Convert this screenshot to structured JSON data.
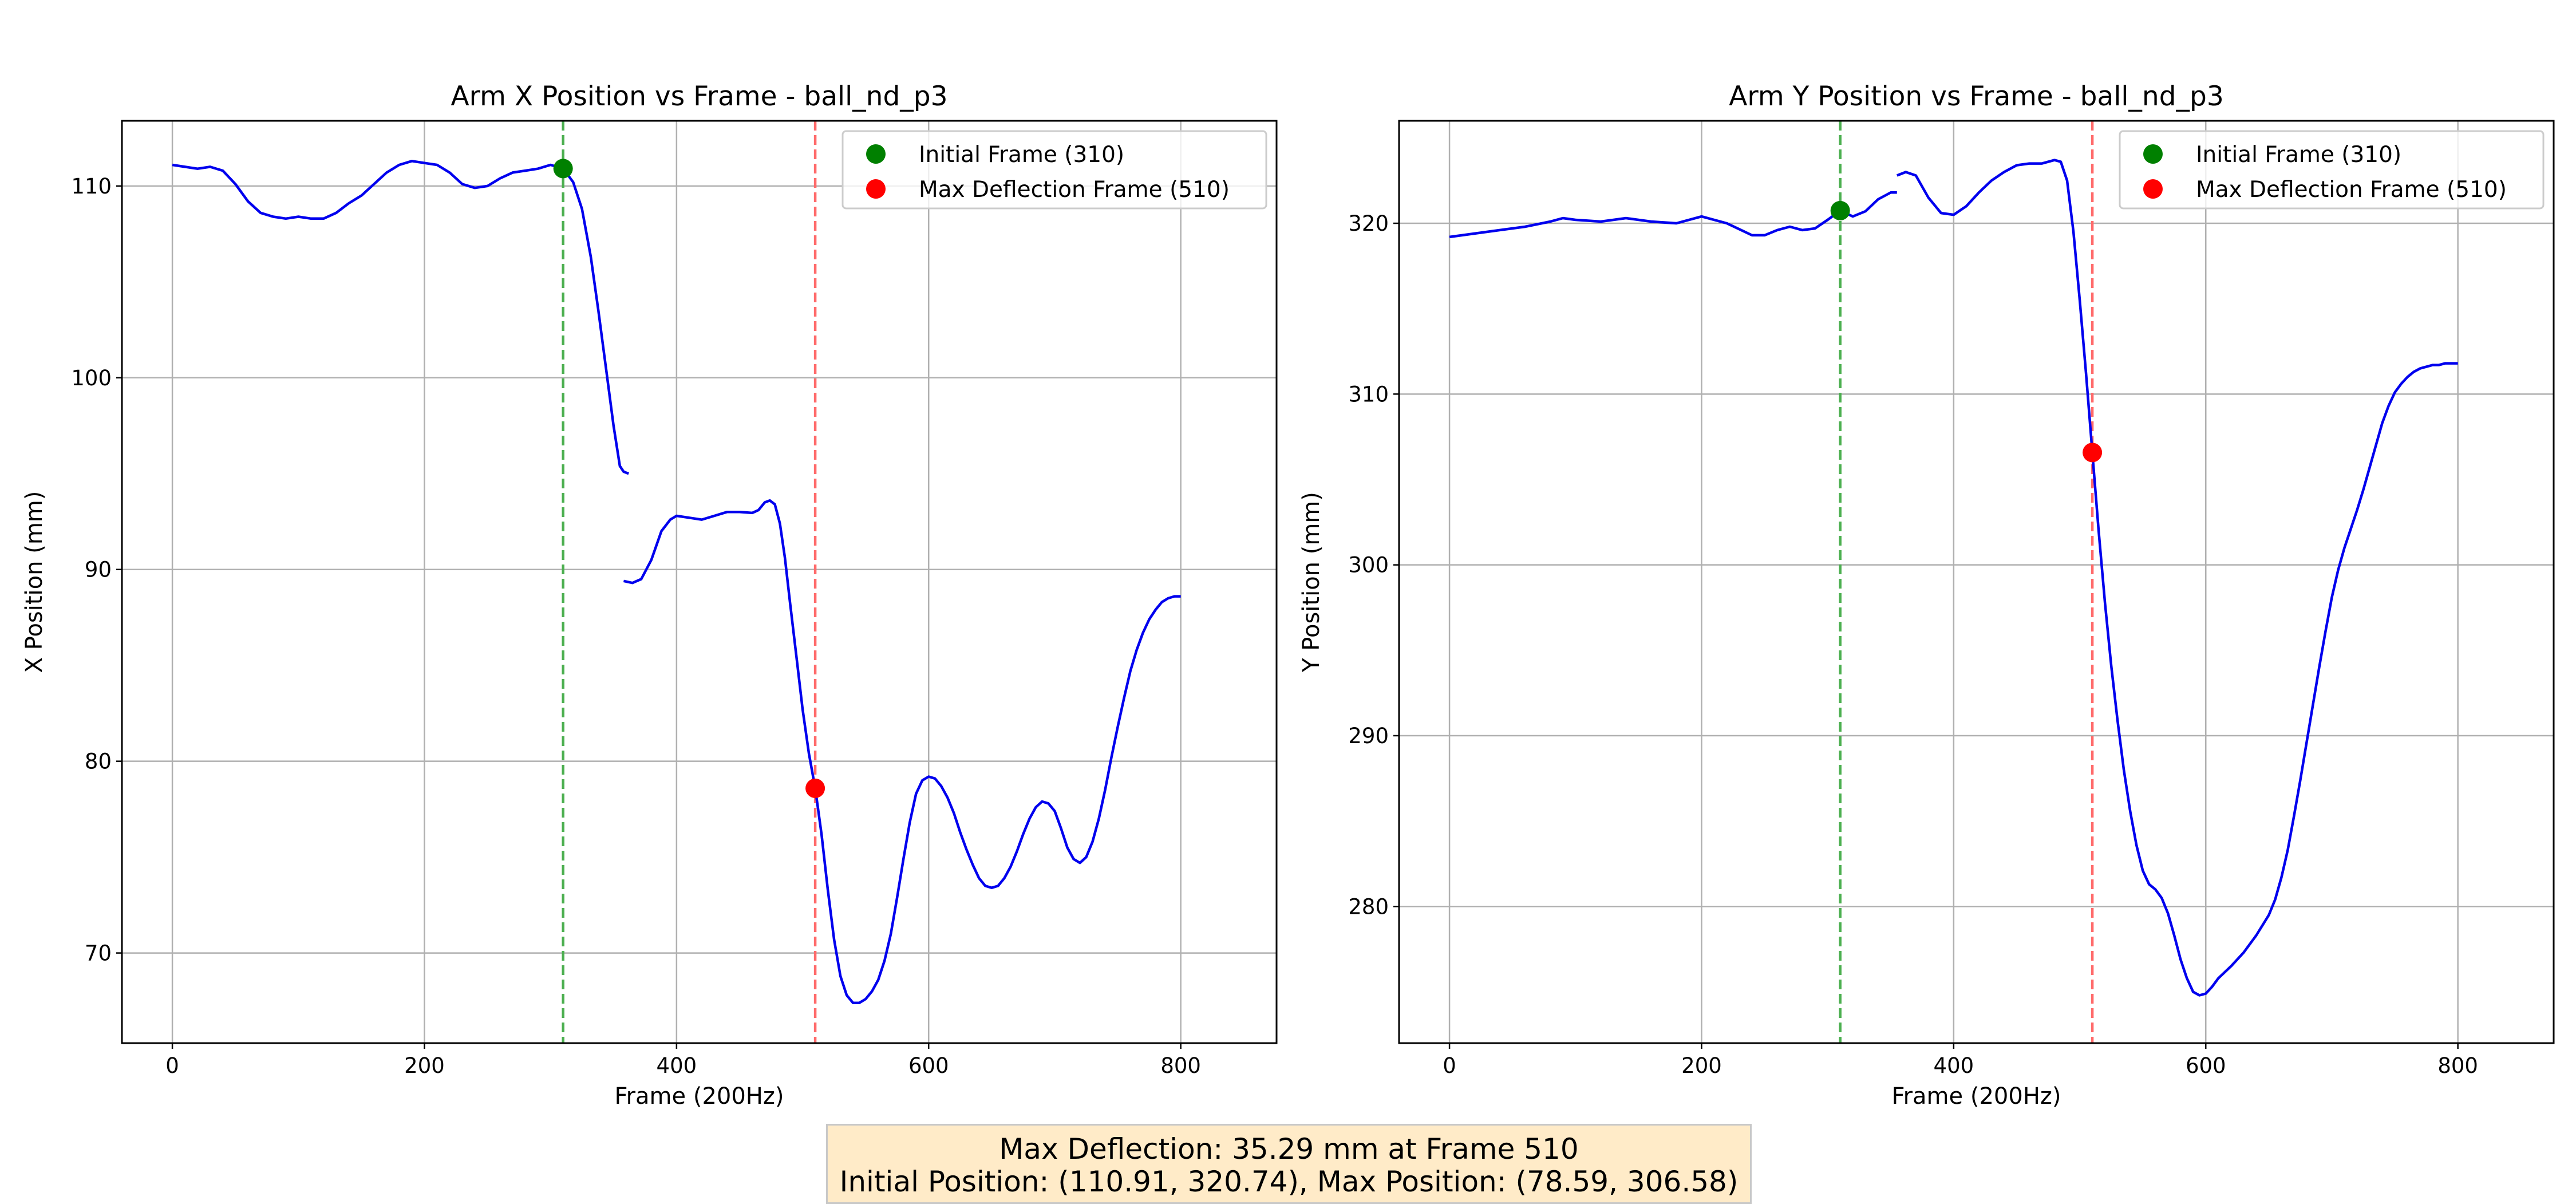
{
  "colors": {
    "line": "#0000ee",
    "initial": "#008000",
    "max": "#ff0000",
    "initial_vline": "#4caf50",
    "max_vline": "#ff6b6b",
    "grid": "#b0b0b0",
    "summary_bg": "#ffebc8"
  },
  "summary": {
    "line1": "Max Deflection: 35.29 mm at Frame 510",
    "line2": "Initial Position: (110.91, 320.74), Max Position: (78.59, 306.58)"
  },
  "chart_data": [
    {
      "type": "line",
      "title": "Arm X Position vs Frame - ball_nd_p3",
      "xlabel": "Frame (200Hz)",
      "ylabel": "X Position (mm)",
      "xlim": [
        -40,
        876
      ],
      "ylim": [
        65.3,
        113.4
      ],
      "xticks": [
        0,
        200,
        400,
        600,
        800
      ],
      "yticks": [
        70,
        80,
        90,
        100,
        110
      ],
      "grid": true,
      "legend_position": "top-right",
      "legend": [
        "Initial Frame (310)",
        "Max Deflection Frame (510)"
      ],
      "vlines": [
        310,
        510
      ],
      "markers": [
        {
          "label": "Initial Frame (310)",
          "x": 310,
          "y": 110.91
        },
        {
          "label": "Max Deflection Frame (510)",
          "x": 510,
          "y": 78.59
        }
      ],
      "series": [
        {
          "segments": [
            [
              [
                0,
                111.1
              ],
              [
                10,
                111.0
              ],
              [
                20,
                110.9
              ],
              [
                30,
                111.0
              ],
              [
                40,
                110.8
              ],
              [
                50,
                110.1
              ],
              [
                60,
                109.2
              ],
              [
                70,
                108.6
              ],
              [
                80,
                108.4
              ],
              [
                90,
                108.3
              ],
              [
                100,
                108.4
              ],
              [
                110,
                108.3
              ],
              [
                120,
                108.3
              ],
              [
                130,
                108.6
              ],
              [
                140,
                109.1
              ],
              [
                150,
                109.5
              ],
              [
                160,
                110.1
              ],
              [
                170,
                110.7
              ],
              [
                180,
                111.1
              ],
              [
                190,
                111.3
              ],
              [
                200,
                111.2
              ],
              [
                210,
                111.1
              ],
              [
                220,
                110.7
              ],
              [
                230,
                110.1
              ],
              [
                240,
                109.9
              ],
              [
                250,
                110.0
              ],
              [
                260,
                110.4
              ],
              [
                270,
                110.7
              ],
              [
                280,
                110.8
              ],
              [
                290,
                110.9
              ],
              [
                300,
                111.1
              ],
              [
                310,
                110.91
              ],
              [
                318,
                110.2
              ],
              [
                325,
                108.8
              ],
              [
                332,
                106.3
              ],
              [
                338,
                103.5
              ],
              [
                344,
                100.5
              ],
              [
                350,
                97.5
              ],
              [
                355,
                95.4
              ],
              [
                358,
                95.1
              ],
              [
                362,
                95.0
              ]
            ],
            [
              [
                358,
                89.4
              ],
              [
                365,
                89.3
              ],
              [
                372,
                89.5
              ],
              [
                380,
                90.5
              ],
              [
                388,
                92.0
              ],
              [
                395,
                92.6
              ],
              [
                400,
                92.8
              ],
              [
                410,
                92.7
              ],
              [
                420,
                92.6
              ],
              [
                430,
                92.8
              ],
              [
                440,
                93.0
              ],
              [
                450,
                93.0
              ],
              [
                460,
                92.95
              ],
              [
                465,
                93.1
              ],
              [
                470,
                93.5
              ],
              [
                474,
                93.6
              ],
              [
                478,
                93.4
              ],
              [
                482,
                92.4
              ],
              [
                486,
                90.6
              ],
              [
                490,
                88.3
              ],
              [
                495,
                85.5
              ],
              [
                500,
                82.7
              ],
              [
                505,
                80.4
              ],
              [
                510,
                78.59
              ],
              [
                515,
                76.2
              ],
              [
                520,
                73.3
              ],
              [
                525,
                70.7
              ],
              [
                530,
                68.8
              ],
              [
                535,
                67.8
              ],
              [
                540,
                67.4
              ],
              [
                545,
                67.4
              ],
              [
                550,
                67.6
              ],
              [
                555,
                68.0
              ],
              [
                560,
                68.6
              ],
              [
                565,
                69.6
              ],
              [
                570,
                71.0
              ],
              [
                575,
                72.9
              ],
              [
                580,
                74.9
              ],
              [
                585,
                76.8
              ],
              [
                590,
                78.3
              ],
              [
                595,
                79.0
              ],
              [
                600,
                79.2
              ],
              [
                605,
                79.1
              ],
              [
                610,
                78.7
              ],
              [
                615,
                78.1
              ],
              [
                620,
                77.3
              ],
              [
                625,
                76.3
              ],
              [
                630,
                75.4
              ],
              [
                635,
                74.6
              ],
              [
                640,
                73.9
              ],
              [
                645,
                73.5
              ],
              [
                650,
                73.4
              ],
              [
                655,
                73.5
              ],
              [
                660,
                73.9
              ],
              [
                665,
                74.5
              ],
              [
                670,
                75.3
              ],
              [
                675,
                76.2
              ],
              [
                680,
                77.0
              ],
              [
                685,
                77.6
              ],
              [
                690,
                77.9
              ],
              [
                695,
                77.8
              ],
              [
                700,
                77.4
              ],
              [
                705,
                76.5
              ],
              [
                710,
                75.5
              ],
              [
                715,
                74.9
              ],
              [
                720,
                74.7
              ],
              [
                725,
                75.0
              ],
              [
                730,
                75.8
              ],
              [
                735,
                77.0
              ],
              [
                740,
                78.5
              ],
              [
                745,
                80.2
              ],
              [
                750,
                81.8
              ],
              [
                755,
                83.3
              ],
              [
                760,
                84.7
              ],
              [
                765,
                85.8
              ],
              [
                770,
                86.7
              ],
              [
                775,
                87.4
              ],
              [
                780,
                87.9
              ],
              [
                785,
                88.3
              ],
              [
                790,
                88.5
              ],
              [
                795,
                88.6
              ],
              [
                800,
                88.6
              ]
            ]
          ]
        }
      ]
    },
    {
      "type": "line",
      "title": "Arm Y Position vs Frame - ball_nd_p3",
      "xlabel": "Frame (200Hz)",
      "ylabel": "Y Position (mm)",
      "xlim": [
        -40,
        876
      ],
      "ylim": [
        272.0,
        326.0
      ],
      "xticks": [
        0,
        200,
        400,
        600,
        800
      ],
      "yticks": [
        280,
        290,
        300,
        310,
        320
      ],
      "grid": true,
      "legend_position": "top-right",
      "legend": [
        "Initial Frame (310)",
        "Max Deflection Frame (510)"
      ],
      "vlines": [
        310,
        510
      ],
      "markers": [
        {
          "label": "Initial Frame (310)",
          "x": 310,
          "y": 320.74
        },
        {
          "label": "Max Deflection Frame (510)",
          "x": 510,
          "y": 306.58
        }
      ],
      "series": [
        {
          "segments": [
            [
              [
                0,
                319.2
              ],
              [
                20,
                319.4
              ],
              [
                40,
                319.6
              ],
              [
                60,
                319.8
              ],
              [
                80,
                320.1
              ],
              [
                90,
                320.3
              ],
              [
                100,
                320.2
              ],
              [
                120,
                320.1
              ],
              [
                140,
                320.3
              ],
              [
                160,
                320.1
              ],
              [
                180,
                320.0
              ],
              [
                200,
                320.4
              ],
              [
                220,
                320.0
              ],
              [
                240,
                319.3
              ],
              [
                250,
                319.3
              ],
              [
                260,
                319.6
              ],
              [
                270,
                319.8
              ],
              [
                280,
                319.6
              ],
              [
                290,
                319.7
              ],
              [
                300,
                320.2
              ],
              [
                310,
                320.74
              ],
              [
                320,
                320.4
              ],
              [
                330,
                320.7
              ],
              [
                340,
                321.4
              ],
              [
                350,
                321.8
              ],
              [
                355,
                321.8
              ]
            ],
            [
              [
                355,
                322.8
              ],
              [
                362,
                323.0
              ],
              [
                370,
                322.8
              ],
              [
                380,
                321.5
              ],
              [
                390,
                320.6
              ],
              [
                400,
                320.5
              ],
              [
                410,
                321.0
              ],
              [
                420,
                321.8
              ],
              [
                430,
                322.5
              ],
              [
                440,
                323.0
              ],
              [
                450,
                323.4
              ],
              [
                460,
                323.5
              ],
              [
                470,
                323.5
              ],
              [
                480,
                323.7
              ],
              [
                485,
                323.6
              ],
              [
                490,
                322.5
              ],
              [
                495,
                319.5
              ],
              [
                500,
                315.5
              ],
              [
                505,
                311.2
              ],
              [
                510,
                306.58
              ],
              [
                515,
                302.0
              ],
              [
                520,
                297.8
              ],
              [
                525,
                294.1
              ],
              [
                530,
                290.9
              ],
              [
                535,
                288.0
              ],
              [
                540,
                285.6
              ],
              [
                545,
                283.6
              ],
              [
                550,
                282.1
              ],
              [
                555,
                281.3
              ],
              [
                560,
                281.0
              ],
              [
                565,
                280.5
              ],
              [
                570,
                279.6
              ],
              [
                575,
                278.3
              ],
              [
                580,
                276.9
              ],
              [
                585,
                275.8
              ],
              [
                590,
                275.0
              ],
              [
                595,
                274.8
              ],
              [
                600,
                274.9
              ],
              [
                605,
                275.3
              ],
              [
                610,
                275.8
              ],
              [
                620,
                276.5
              ],
              [
                630,
                277.3
              ],
              [
                640,
                278.3
              ],
              [
                650,
                279.5
              ],
              [
                655,
                280.4
              ],
              [
                660,
                281.7
              ],
              [
                665,
                283.3
              ],
              [
                670,
                285.3
              ],
              [
                675,
                287.4
              ],
              [
                680,
                289.6
              ],
              [
                685,
                291.8
              ],
              [
                690,
                294.0
              ],
              [
                695,
                296.1
              ],
              [
                700,
                298.1
              ],
              [
                705,
                299.7
              ],
              [
                710,
                301.0
              ],
              [
                715,
                302.1
              ],
              [
                720,
                303.2
              ],
              [
                725,
                304.4
              ],
              [
                730,
                305.7
              ],
              [
                735,
                307.0
              ],
              [
                740,
                308.3
              ],
              [
                745,
                309.3
              ],
              [
                750,
                310.1
              ],
              [
                755,
                310.6
              ],
              [
                760,
                311.0
              ],
              [
                765,
                311.3
              ],
              [
                770,
                311.5
              ],
              [
                775,
                311.6
              ],
              [
                780,
                311.7
              ],
              [
                785,
                311.7
              ],
              [
                790,
                311.8
              ],
              [
                800,
                311.8
              ]
            ]
          ]
        }
      ]
    }
  ]
}
